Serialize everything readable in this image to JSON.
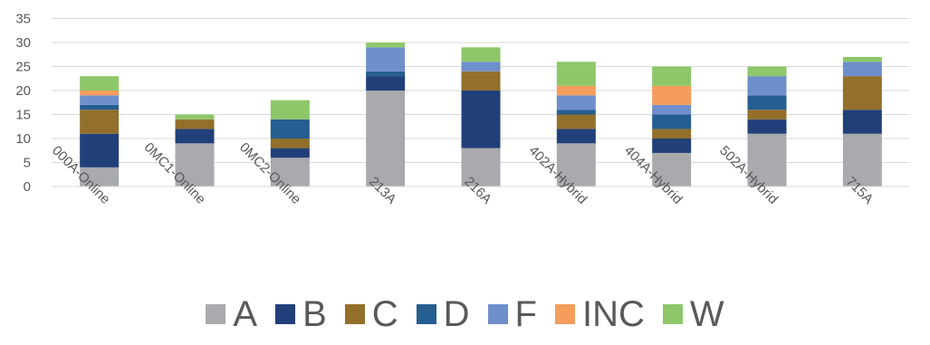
{
  "chart_data": {
    "type": "bar",
    "stacked": true,
    "categories": [
      "000A-Online",
      "0MC1-Online",
      "0MC2-Online",
      "213A",
      "216A",
      "402A-Hybrid",
      "404A-Hybrid",
      "502A-Hybrid",
      "715A"
    ],
    "series": [
      {
        "name": "A",
        "color": "#a9aaad",
        "values": [
          4,
          9,
          6,
          20,
          8,
          9,
          7,
          11,
          11
        ]
      },
      {
        "name": "B",
        "color": "#21407a",
        "values": [
          7,
          3,
          2,
          3,
          12,
          3,
          3,
          3,
          5
        ]
      },
      {
        "name": "C",
        "color": "#92702b",
        "values": [
          5,
          2,
          2,
          0,
          4,
          3,
          2,
          2,
          7
        ]
      },
      {
        "name": "D",
        "color": "#255e91",
        "values": [
          1,
          0,
          4,
          1,
          0,
          1,
          3,
          3,
          0
        ]
      },
      {
        "name": "F",
        "color": "#6f8fcb",
        "values": [
          2,
          0,
          0,
          5,
          2,
          3,
          2,
          4,
          3
        ]
      },
      {
        "name": "INC",
        "color": "#f49d5c",
        "values": [
          1,
          0,
          0,
          0,
          0,
          2,
          4,
          0,
          0
        ]
      },
      {
        "name": "W",
        "color": "#8ec76a",
        "values": [
          3,
          1,
          4,
          1,
          3,
          5,
          4,
          2,
          1
        ]
      }
    ],
    "ylim": [
      0,
      35
    ],
    "yticks": [
      0,
      5,
      10,
      15,
      20,
      25,
      30,
      35
    ],
    "grid": true,
    "legend_position": "bottom",
    "title": "",
    "xlabel": "",
    "ylabel": ""
  }
}
